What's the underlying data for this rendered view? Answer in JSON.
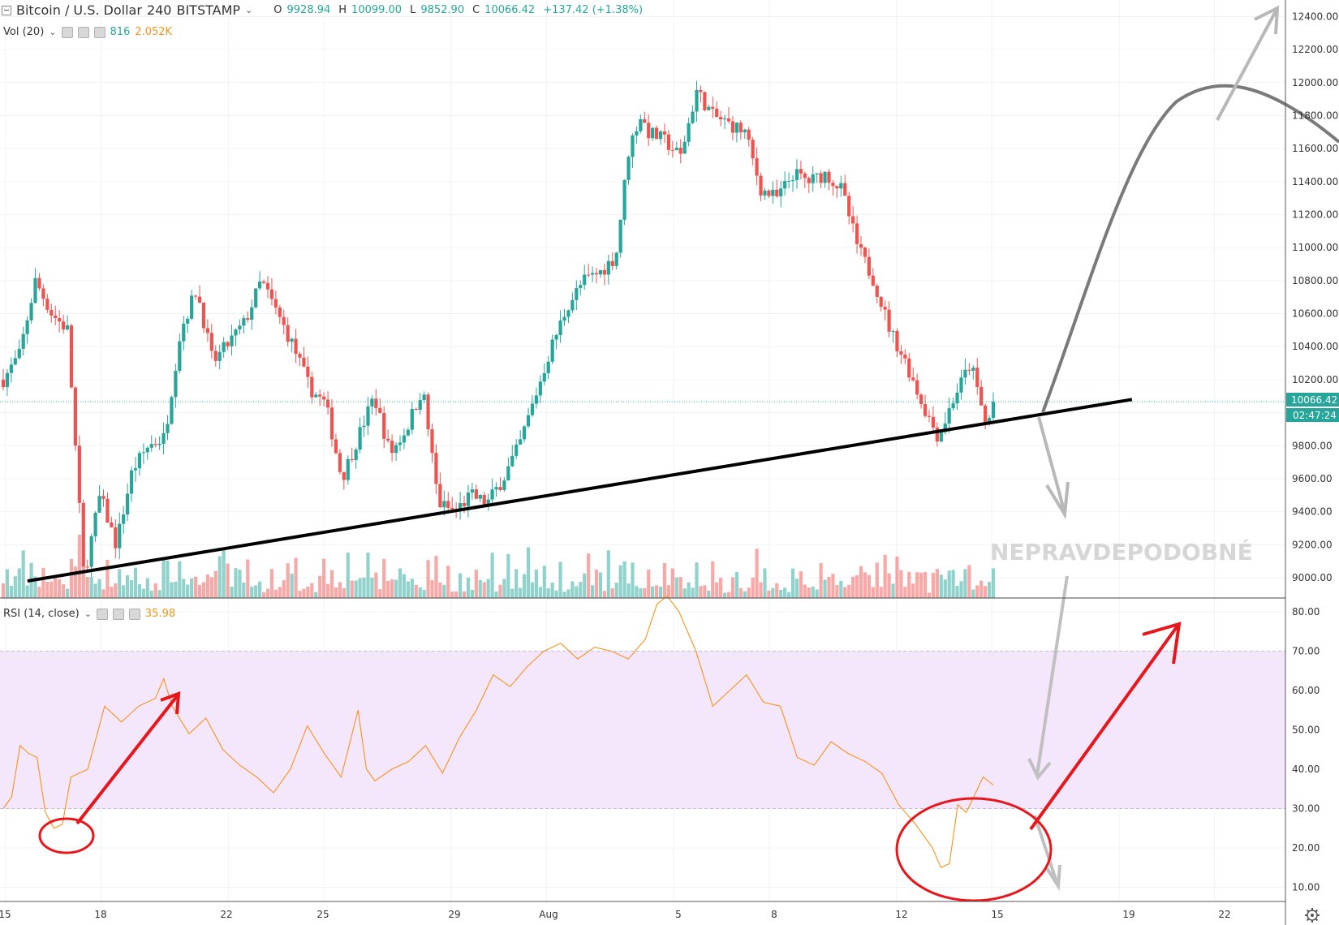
{
  "header": {
    "symbol": "Bitcoin / U.S. Dollar",
    "interval": "240",
    "exchange": "BITSTAMP",
    "ohlc": [
      {
        "k": "O",
        "v": "9928.94"
      },
      {
        "k": "H",
        "v": "10099.00"
      },
      {
        "k": "L",
        "v": "9852.90"
      },
      {
        "k": "C",
        "v": "10066.42"
      }
    ],
    "change": "+137.42 (+1.38%)"
  },
  "volume_legend": {
    "label": "Vol (20)",
    "value": "816",
    "ma_value": "2.052K"
  },
  "rsi_legend": {
    "label": "RSI (14, close)",
    "value": "35.98"
  },
  "price_axis": {
    "ticks": [
      "12400.00",
      "12200.00",
      "12000.00",
      "11800.00",
      "11600.00",
      "11400.00",
      "11200.00",
      "11000.00",
      "10800.00",
      "10600.00",
      "10400.00",
      "10200.00",
      "9800.00",
      "9600.00",
      "9400.00",
      "9200.00",
      "9000.00"
    ],
    "last_price_label": "10066.42",
    "countdown_label": "02:47:24"
  },
  "rsi_axis": {
    "ticks": [
      "80.00",
      "70.00",
      "60.00",
      "50.00",
      "40.00",
      "30.00",
      "20.00",
      "10.00"
    ]
  },
  "time_axis": {
    "ticks": [
      "15",
      "18",
      "22",
      "25",
      "29",
      "Aug",
      "5",
      "8",
      "12",
      "15",
      "19",
      "22"
    ]
  },
  "annotation": {
    "text": "NEPRAVDEPODOBNÉ"
  },
  "colors": {
    "up": "#26a69a",
    "down": "#ef5350",
    "rsi_line": "#f7931a",
    "rsi_band": "#f4e6fb",
    "annotation_red": "#e8161b",
    "last_price": "#26a69a"
  },
  "icons": {
    "top_left": "collapse-icon",
    "bottom_right": "settings-gear-icon"
  },
  "chart_data": [
    {
      "type": "candlestick",
      "title": "Bitcoin / U.S. Dollar 240 BITSTAMP",
      "ylim": [
        8900,
        12500
      ],
      "x_ticks": [
        "15",
        "18",
        "22",
        "25",
        "29",
        "Aug",
        "5",
        "8",
        "12",
        "15",
        "19",
        "22"
      ],
      "waypoints": [
        {
          "x": 0,
          "price": 10200
        },
        {
          "x": 1,
          "price": 10350
        },
        {
          "x": 2,
          "price": 10800
        },
        {
          "x": 3,
          "price": 10600
        },
        {
          "x": 4,
          "price": 10500
        },
        {
          "x": 5,
          "price": 9000
        },
        {
          "x": 6,
          "price": 9500
        },
        {
          "x": 7,
          "price": 9200
        },
        {
          "x": 8,
          "price": 9650
        },
        {
          "x": 9,
          "price": 9800
        },
        {
          "x": 10,
          "price": 9850
        },
        {
          "x": 11,
          "price": 10500
        },
        {
          "x": 12,
          "price": 10750
        },
        {
          "x": 13,
          "price": 10300
        },
        {
          "x": 15,
          "price": 10550
        },
        {
          "x": 16,
          "price": 10800
        },
        {
          "x": 17,
          "price": 10600
        },
        {
          "x": 18,
          "price": 10400
        },
        {
          "x": 19,
          "price": 10150
        },
        {
          "x": 20,
          "price": 10050
        },
        {
          "x": 21,
          "price": 9600
        },
        {
          "x": 22,
          "price": 9850
        },
        {
          "x": 23,
          "price": 10100
        },
        {
          "x": 24,
          "price": 9750
        },
        {
          "x": 25,
          "price": 9900
        },
        {
          "x": 26,
          "price": 10150
        },
        {
          "x": 27,
          "price": 9450
        },
        {
          "x": 28,
          "price": 9400
        },
        {
          "x": 29,
          "price": 9500
        },
        {
          "x": 30,
          "price": 9450
        },
        {
          "x": 31,
          "price": 9600
        },
        {
          "x": 32,
          "price": 9800
        },
        {
          "x": 33,
          "price": 10100
        },
        {
          "x": 34,
          "price": 10400
        },
        {
          "x": 35,
          "price": 10650
        },
        {
          "x": 36,
          "price": 10800
        },
        {
          "x": 37,
          "price": 10850
        },
        {
          "x": 38,
          "price": 10950
        },
        {
          "x": 38.8,
          "price": 11600
        },
        {
          "x": 39.5,
          "price": 11800
        },
        {
          "x": 40,
          "price": 11700
        },
        {
          "x": 41,
          "price": 11650
        },
        {
          "x": 42,
          "price": 11550
        },
        {
          "x": 43,
          "price": 11950
        },
        {
          "x": 44,
          "price": 11800
        },
        {
          "x": 45,
          "price": 11750
        },
        {
          "x": 46,
          "price": 11700
        },
        {
          "x": 47,
          "price": 11350
        },
        {
          "x": 48,
          "price": 11300
        },
        {
          "x": 49,
          "price": 11450
        },
        {
          "x": 50,
          "price": 11400
        },
        {
          "x": 51,
          "price": 11450
        },
        {
          "x": 52,
          "price": 11350
        },
        {
          "x": 53,
          "price": 11000
        },
        {
          "x": 54,
          "price": 10800
        },
        {
          "x": 55,
          "price": 10500
        },
        {
          "x": 56,
          "price": 10300
        },
        {
          "x": 57,
          "price": 10050
        },
        {
          "x": 58,
          "price": 9850
        },
        {
          "x": 59,
          "price": 10100
        },
        {
          "x": 60,
          "price": 10300
        },
        {
          "x": 61,
          "price": 9900
        },
        {
          "x": 61.4,
          "price": 10066
        }
      ],
      "last_price": 10066.42,
      "trendline": {
        "from": {
          "x": 1.5,
          "price": 8980
        },
        "to": {
          "x": 70,
          "price": 10080
        }
      }
    },
    {
      "type": "line",
      "title": "RSI (14, close)",
      "ylim": [
        10,
        85
      ],
      "bands": {
        "upper": 70,
        "lower": 30
      },
      "points": [
        [
          0,
          30
        ],
        [
          0.5,
          33
        ],
        [
          1,
          46
        ],
        [
          1.5,
          44
        ],
        [
          2,
          43
        ],
        [
          2.5,
          29
        ],
        [
          3,
          25
        ],
        [
          3.5,
          26
        ],
        [
          4,
          38
        ],
        [
          5,
          40
        ],
        [
          6,
          56
        ],
        [
          7,
          52
        ],
        [
          8,
          56
        ],
        [
          9,
          58
        ],
        [
          9.5,
          63
        ],
        [
          10,
          56
        ],
        [
          11,
          49
        ],
        [
          12,
          53
        ],
        [
          13,
          45
        ],
        [
          14,
          41
        ],
        [
          15,
          38
        ],
        [
          16,
          34
        ],
        [
          17,
          40
        ],
        [
          18,
          51
        ],
        [
          19,
          44
        ],
        [
          20,
          38
        ],
        [
          21,
          55
        ],
        [
          21.5,
          40
        ],
        [
          22,
          37
        ],
        [
          23,
          40
        ],
        [
          24,
          42
        ],
        [
          25,
          46
        ],
        [
          26,
          39
        ],
        [
          27,
          48
        ],
        [
          28,
          55
        ],
        [
          29,
          64
        ],
        [
          30,
          61
        ],
        [
          31,
          66
        ],
        [
          32,
          70
        ],
        [
          33,
          72
        ],
        [
          34,
          68
        ],
        [
          35,
          71
        ],
        [
          36,
          70
        ],
        [
          37,
          68
        ],
        [
          38,
          73
        ],
        [
          38.7,
          82
        ],
        [
          39.3,
          84
        ],
        [
          40,
          80
        ],
        [
          41,
          70
        ],
        [
          42,
          56
        ],
        [
          43,
          60
        ],
        [
          44,
          64
        ],
        [
          45,
          57
        ],
        [
          46,
          56
        ],
        [
          47,
          43
        ],
        [
          48,
          41
        ],
        [
          49,
          47
        ],
        [
          50,
          44
        ],
        [
          51,
          42
        ],
        [
          52,
          39
        ],
        [
          53,
          31
        ],
        [
          54,
          26
        ],
        [
          55,
          20
        ],
        [
          55.5,
          15
        ],
        [
          56,
          16
        ],
        [
          56.5,
          31
        ],
        [
          57,
          29
        ],
        [
          58,
          38
        ],
        [
          58.6,
          35.98
        ]
      ]
    }
  ]
}
